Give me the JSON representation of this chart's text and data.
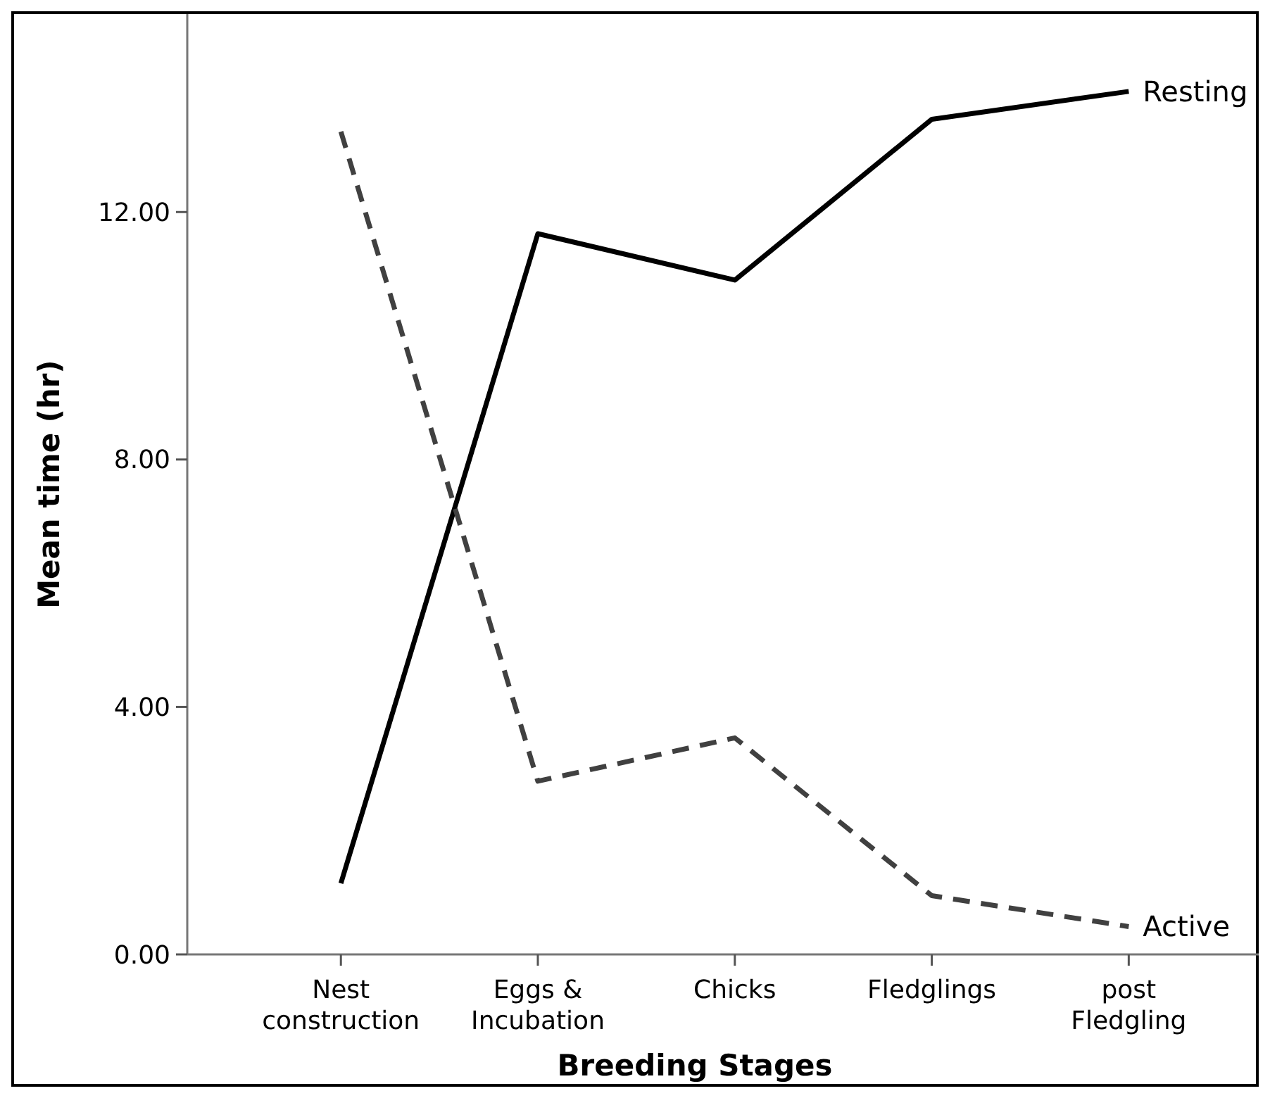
{
  "chart_data": {
    "type": "line",
    "xlabel": "Breeding Stages",
    "ylabel": "Mean time (hr)",
    "categories": [
      "Nest construction",
      "Eggs & Incubation",
      "Chicks",
      "Fledglings",
      "post Fledgling"
    ],
    "series": [
      {
        "name": "Resting",
        "color": "#000000",
        "line_style": "solid",
        "values": [
          1.15,
          11.65,
          10.9,
          13.5,
          13.95
        ]
      },
      {
        "name": "Active",
        "color": "#404040",
        "line_style": "dashed",
        "values": [
          13.3,
          2.8,
          3.5,
          0.95,
          0.45
        ]
      }
    ],
    "ylim": [
      0,
      15.2
    ],
    "yticks": [
      {
        "value": 0,
        "label": "0.00"
      },
      {
        "value": 4,
        "label": "4.00"
      },
      {
        "value": 8,
        "label": "8.00"
      },
      {
        "value": 12,
        "label": "12.00"
      }
    ],
    "marker": "none"
  }
}
